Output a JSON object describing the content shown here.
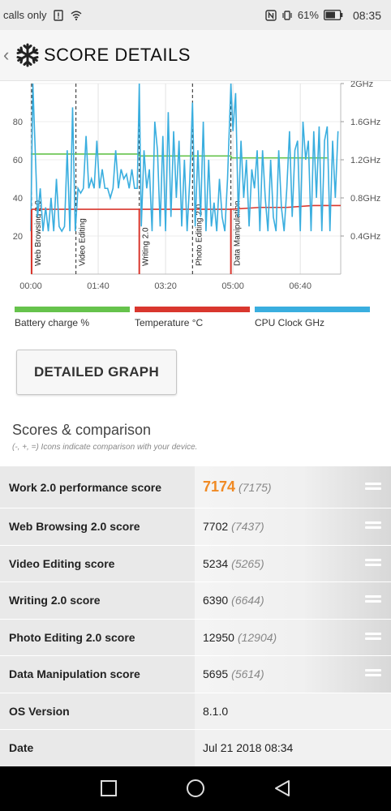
{
  "status_bar": {
    "carrier_text": "calls only",
    "battery_percent": "61%",
    "time": "08:35",
    "icons": [
      "sim-alert-icon",
      "wifi-icon",
      "nfc-icon",
      "vibrate-icon",
      "battery-icon"
    ]
  },
  "header": {
    "title": "SCORE DETAILS",
    "logo_icon": "snowflake-icon",
    "back_icon": "chevron-left-icon"
  },
  "chart_data": {
    "type": "line",
    "x_ticks": [
      "00:00",
      "01:40",
      "03:20",
      "05:00",
      "06:40"
    ],
    "y_left_ticks": [
      "20",
      "40",
      "60",
      "80"
    ],
    "y_right_ticks": [
      "0.4GHz",
      "0.8GHz",
      "1.2GHz",
      "1.6GHz",
      "2GHz"
    ],
    "ylim_left": [
      0,
      100
    ],
    "ylim_right_ghz": [
      0,
      2
    ],
    "xlim_minutes": [
      0,
      460
    ],
    "segments": [
      {
        "label": "Web Browsing 2.0",
        "start_min": 0
      },
      {
        "label": "Video Editing",
        "start_min": 67
      },
      {
        "label": "Writing 2.0",
        "start_min": 161
      },
      {
        "label": "Photo Editing 2.0",
        "start_min": 240
      },
      {
        "label": "Data Manipulation",
        "start_min": 297
      }
    ],
    "series": [
      {
        "name": "Battery charge %",
        "color": "#66c34c",
        "x": [
          0,
          160,
          161,
          297,
          298,
          440
        ],
        "y": [
          63,
          63,
          62,
          62,
          61,
          61
        ]
      },
      {
        "name": "Temperature °C",
        "color": "#d9372e",
        "x": [
          0,
          3,
          30,
          60,
          161,
          200,
          297,
          340,
          380,
          420,
          460
        ],
        "y": [
          34,
          34,
          34,
          34,
          34,
          34,
          34,
          35,
          35,
          36,
          36
        ]
      },
      {
        "name": "CPU Clock GHz",
        "color": "#3aaedf",
        "x": [
          0,
          3,
          6,
          10,
          14,
          18,
          22,
          26,
          30,
          34,
          38,
          42,
          46,
          50,
          54,
          58,
          62,
          66,
          70,
          74,
          78,
          82,
          86,
          90,
          94,
          98,
          102,
          106,
          110,
          114,
          118,
          122,
          126,
          130,
          134,
          138,
          142,
          146,
          150,
          154,
          158,
          161,
          164,
          168,
          172,
          176,
          180,
          184,
          188,
          192,
          196,
          200,
          204,
          208,
          212,
          216,
          220,
          224,
          228,
          232,
          236,
          240,
          244,
          248,
          252,
          256,
          260,
          264,
          268,
          272,
          276,
          280,
          284,
          288,
          292,
          297,
          300,
          304,
          308,
          312,
          316,
          320,
          324,
          328,
          332,
          336,
          340,
          344,
          348,
          352,
          356,
          360,
          364,
          368,
          372,
          376,
          380,
          384,
          388,
          392,
          396,
          400,
          404,
          408,
          412,
          416,
          420,
          424,
          428,
          432,
          436,
          440,
          444,
          448,
          452,
          456
        ],
        "y_ghz": [
          0.45,
          2.0,
          1.4,
          0.6,
          0.9,
          0.45,
          0.7,
          0.45,
          0.8,
          0.45,
          1.0,
          0.5,
          0.45,
          0.5,
          1.3,
          0.45,
          1.75,
          0.45,
          0.9,
          0.85,
          0.9,
          1.45,
          0.9,
          1.0,
          0.9,
          1.4,
          0.9,
          1.1,
          0.9,
          0.9,
          0.8,
          0.9,
          1.3,
          0.9,
          1.1,
          1.0,
          1.05,
          0.9,
          1.1,
          0.9,
          0.9,
          2.0,
          0.5,
          1.3,
          0.9,
          1.1,
          0.45,
          1.6,
          1.3,
          0.5,
          1.45,
          0.45,
          1.7,
          0.6,
          1.5,
          0.8,
          1.4,
          0.5,
          1.2,
          0.45,
          1.0,
          1.8,
          0.5,
          1.3,
          0.6,
          1.6,
          0.45,
          1.2,
          0.5,
          0.75,
          0.45,
          1.0,
          0.6,
          0.45,
          1.0,
          2.0,
          1.5,
          1.9,
          0.6,
          1.4,
          0.8,
          1.2,
          0.5,
          1.1,
          0.9,
          1.3,
          0.45,
          1.3,
          0.8,
          0.45,
          1.2,
          0.6,
          0.45,
          1.3,
          0.7,
          0.45,
          0.9,
          1.5,
          0.6,
          1.3,
          1.4,
          0.45,
          1.6,
          1.2,
          1.4,
          0.45,
          1.5,
          0.8,
          1.55,
          0.45,
          1.4,
          1.55,
          0.45,
          1.4,
          0.8,
          1.5
        ]
      }
    ],
    "grid": true
  },
  "legend": [
    {
      "label": "Battery charge %",
      "color": "#66c34c"
    },
    {
      "label": "Temperature °C",
      "color": "#d9372e"
    },
    {
      "label": "CPU Clock GHz",
      "color": "#3aaedf"
    }
  ],
  "detail_button": {
    "label": "DETAILED GRAPH"
  },
  "scores": {
    "title": "Scores & comparison",
    "note": "(-, +, =) Icons indicate comparison with your device.",
    "comparison_icon": "equals-icon",
    "rows": [
      {
        "label": "Work 2.0 performance score",
        "value": "7174",
        "ref": "(7175)"
      },
      {
        "label": "Web Browsing 2.0 score",
        "value": "7702",
        "ref": "(7437)"
      },
      {
        "label": "Video Editing score",
        "value": "5234",
        "ref": "(5265)"
      },
      {
        "label": "Writing 2.0 score",
        "value": "6390",
        "ref": "(6644)"
      },
      {
        "label": "Photo Editing 2.0 score",
        "value": "12950",
        "ref": "(12904)"
      },
      {
        "label": "Data Manipulation score",
        "value": "5695",
        "ref": "(5614)"
      }
    ],
    "info_rows": [
      {
        "label": "OS Version",
        "value": "8.1.0"
      },
      {
        "label": "Date",
        "value": "Jul 21 2018 08:34"
      }
    ]
  },
  "nav": {
    "icons": [
      "recents-square-icon",
      "home-circle-icon",
      "back-triangle-icon"
    ]
  }
}
